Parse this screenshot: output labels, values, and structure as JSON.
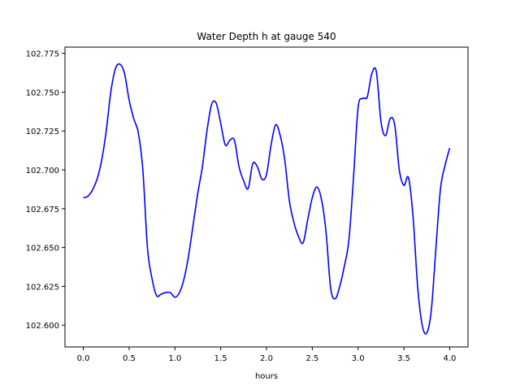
{
  "chart_data": {
    "type": "line",
    "title": "Water Depth h at gauge 540",
    "xlabel": "hours",
    "ylabel": "",
    "xlim": [
      -0.2,
      4.2
    ],
    "ylim": [
      102.586,
      102.779
    ],
    "grid": false,
    "xticks": [
      0.0,
      0.5,
      1.0,
      1.5,
      2.0,
      2.5,
      3.0,
      3.5,
      4.0
    ],
    "xtick_labels": [
      "0.0",
      "0.5",
      "1.0",
      "1.5",
      "2.0",
      "2.5",
      "3.0",
      "3.5",
      "4.0"
    ],
    "yticks": [
      102.6,
      102.625,
      102.65,
      102.675,
      102.7,
      102.725,
      102.75,
      102.775
    ],
    "ytick_labels": [
      "102.600",
      "102.625",
      "102.650",
      "102.675",
      "102.700",
      "102.725",
      "102.750",
      "102.775"
    ],
    "series": [
      {
        "color": "#0000ff",
        "x": [
          0.0,
          0.05,
          0.1,
          0.15,
          0.2,
          0.25,
          0.3,
          0.35,
          0.4,
          0.45,
          0.5,
          0.55,
          0.6,
          0.65,
          0.7,
          0.75,
          0.8,
          0.85,
          0.9,
          0.95,
          1.0,
          1.05,
          1.1,
          1.15,
          1.2,
          1.25,
          1.3,
          1.35,
          1.4,
          1.45,
          1.5,
          1.55,
          1.6,
          1.65,
          1.7,
          1.75,
          1.8,
          1.85,
          1.9,
          1.95,
          2.0,
          2.05,
          2.1,
          2.15,
          2.2,
          2.25,
          2.3,
          2.35,
          2.4,
          2.45,
          2.5,
          2.55,
          2.6,
          2.65,
          2.7,
          2.75,
          2.8,
          2.85,
          2.9,
          2.95,
          3.0,
          3.05,
          3.1,
          3.15,
          3.2,
          3.25,
          3.3,
          3.35,
          3.4,
          3.45,
          3.5,
          3.55,
          3.6,
          3.65,
          3.7,
          3.75,
          3.8,
          3.85,
          3.9,
          3.95,
          4.0
        ],
        "y": [
          102.682,
          102.683,
          102.687,
          102.694,
          102.706,
          102.725,
          102.75,
          102.765,
          102.768,
          102.762,
          102.745,
          102.733,
          102.724,
          102.7,
          102.65,
          102.63,
          102.619,
          102.62,
          102.621,
          102.621,
          102.618,
          102.621,
          102.63,
          102.645,
          102.665,
          102.685,
          102.702,
          102.725,
          102.742,
          102.743,
          102.73,
          102.716,
          102.719,
          102.719,
          102.702,
          102.693,
          102.688,
          102.704,
          102.702,
          102.694,
          102.697,
          102.716,
          102.729,
          102.722,
          102.706,
          102.68,
          102.666,
          102.657,
          102.653,
          102.668,
          102.682,
          102.689,
          102.681,
          102.66,
          102.624,
          102.617,
          102.625,
          102.638,
          102.655,
          102.695,
          102.74,
          102.746,
          102.747,
          102.762,
          102.763,
          102.731,
          102.722,
          102.733,
          102.729,
          102.7,
          102.69,
          102.695,
          102.67,
          102.625,
          102.6,
          102.595,
          102.61,
          102.65,
          102.688,
          102.703,
          102.714
        ]
      }
    ]
  }
}
